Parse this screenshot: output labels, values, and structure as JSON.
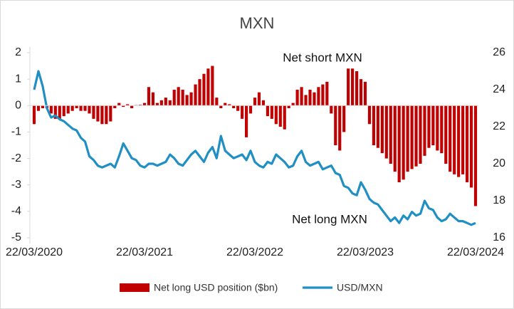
{
  "chart_data": {
    "type": "bar_line",
    "title": "MXN",
    "annotations": [
      "Net short MXN",
      "Net long MXN"
    ],
    "categories": [
      "22/03/2020",
      null,
      null,
      null,
      null,
      null,
      null,
      null,
      null,
      null,
      null,
      null,
      null,
      null,
      null,
      null,
      null,
      null,
      null,
      null,
      null,
      null,
      null,
      null,
      null,
      null,
      "22/03/2021",
      null,
      null,
      null,
      null,
      null,
      null,
      null,
      null,
      null,
      null,
      null,
      null,
      null,
      null,
      null,
      null,
      null,
      null,
      null,
      null,
      null,
      null,
      null,
      null,
      null,
      "22/03/2022",
      null,
      null,
      null,
      null,
      null,
      null,
      null,
      null,
      null,
      null,
      null,
      null,
      null,
      null,
      null,
      null,
      null,
      null,
      null,
      null,
      null,
      null,
      null,
      null,
      null,
      "22/03/2023",
      null,
      null,
      null,
      null,
      null,
      null,
      null,
      null,
      null,
      null,
      null,
      null,
      null,
      null,
      null,
      null,
      null,
      null,
      null,
      null,
      null,
      null,
      null,
      null,
      null,
      "22/03/2024"
    ],
    "series": [
      {
        "name": "Net long USD position ($bn)",
        "color": "#c00000",
        "kind": "bar",
        "axis": "y",
        "values": [
          -0.7,
          -0.2,
          -0.1,
          -0.1,
          -0.3,
          -0.5,
          -0.5,
          -0.4,
          -0.3,
          -0.2,
          -0.1,
          -0.2,
          -0.2,
          -0.3,
          -0.5,
          -0.6,
          -0.7,
          -0.7,
          -0.6,
          -0.1,
          0.1,
          -0.05,
          0.05,
          -0.1,
          0.02,
          0.03,
          0.1,
          0.7,
          0.5,
          0.1,
          0.2,
          0.3,
          0.2,
          0.6,
          0.7,
          0.6,
          0.4,
          0.5,
          0.8,
          1.0,
          1.2,
          1.4,
          1.5,
          0.3,
          -0.1,
          0.1,
          0.05,
          -0.1,
          -0.2,
          -0.5,
          -1.2,
          -0.3,
          0.3,
          0.5,
          0.2,
          -0.4,
          -0.5,
          -0.7,
          -0.8,
          -0.9,
          -0.1,
          0.1,
          0.6,
          0.7,
          0.4,
          0.6,
          0.5,
          0.7,
          0.8,
          0.9,
          -0.3,
          -1.5,
          -1.7,
          -1.0,
          1.4,
          1.4,
          1.3,
          1.0,
          0.9,
          -0.7,
          -1.5,
          -1.6,
          -1.8,
          -2.0,
          -2.2,
          -2.5,
          -2.9,
          -2.8,
          -2.5,
          -2.4,
          -2.3,
          -2.2,
          -1.9,
          -1.6,
          -1.5,
          -1.7,
          -1.8,
          -2.2,
          -2.5,
          -2.6,
          -2.7,
          -2.6,
          -2.9,
          -3.1,
          -3.8
        ]
      },
      {
        "name": "USD/MXN",
        "color": "#1f8fc4",
        "kind": "line",
        "axis": "y2",
        "values": [
          24.0,
          25.0,
          24.2,
          23.0,
          22.5,
          22.6,
          22.4,
          22.3,
          22.1,
          21.9,
          21.8,
          21.4,
          21.2,
          20.4,
          20.2,
          19.9,
          19.8,
          19.9,
          20.0,
          19.8,
          20.4,
          21.1,
          20.7,
          20.3,
          20.2,
          19.9,
          19.8,
          20.0,
          20.0,
          19.9,
          20.0,
          20.1,
          20.5,
          20.3,
          20.0,
          19.9,
          20.2,
          20.5,
          20.7,
          20.4,
          20.1,
          20.6,
          20.9,
          20.3,
          21.5,
          20.7,
          20.5,
          20.3,
          20.4,
          20.5,
          20.2,
          20.7,
          20.1,
          19.9,
          19.8,
          20.1,
          20.0,
          20.5,
          20.3,
          20.1,
          19.8,
          19.9,
          20.4,
          20.7,
          20.1,
          19.9,
          20.0,
          20.1,
          19.7,
          19.8,
          19.9,
          19.5,
          19.4,
          18.8,
          18.7,
          18.4,
          18.3,
          19.0,
          18.6,
          18.1,
          17.9,
          17.8,
          17.5,
          17.2,
          16.9,
          17.1,
          16.8,
          17.2,
          17.0,
          17.4,
          17.2,
          17.3,
          18.0,
          17.6,
          17.5,
          17.1,
          16.9,
          17.0,
          17.3,
          17.1,
          16.9,
          16.9,
          16.8,
          16.7,
          16.8
        ]
      }
    ],
    "ylim": [
      -5,
      2
    ],
    "yticks": [
      -5,
      -4,
      -3,
      -2,
      -1,
      0,
      1,
      2
    ],
    "y2lim": [
      16,
      26
    ],
    "y2ticks": [
      16,
      18,
      20,
      22,
      24,
      26
    ],
    "legend": "bottom"
  }
}
